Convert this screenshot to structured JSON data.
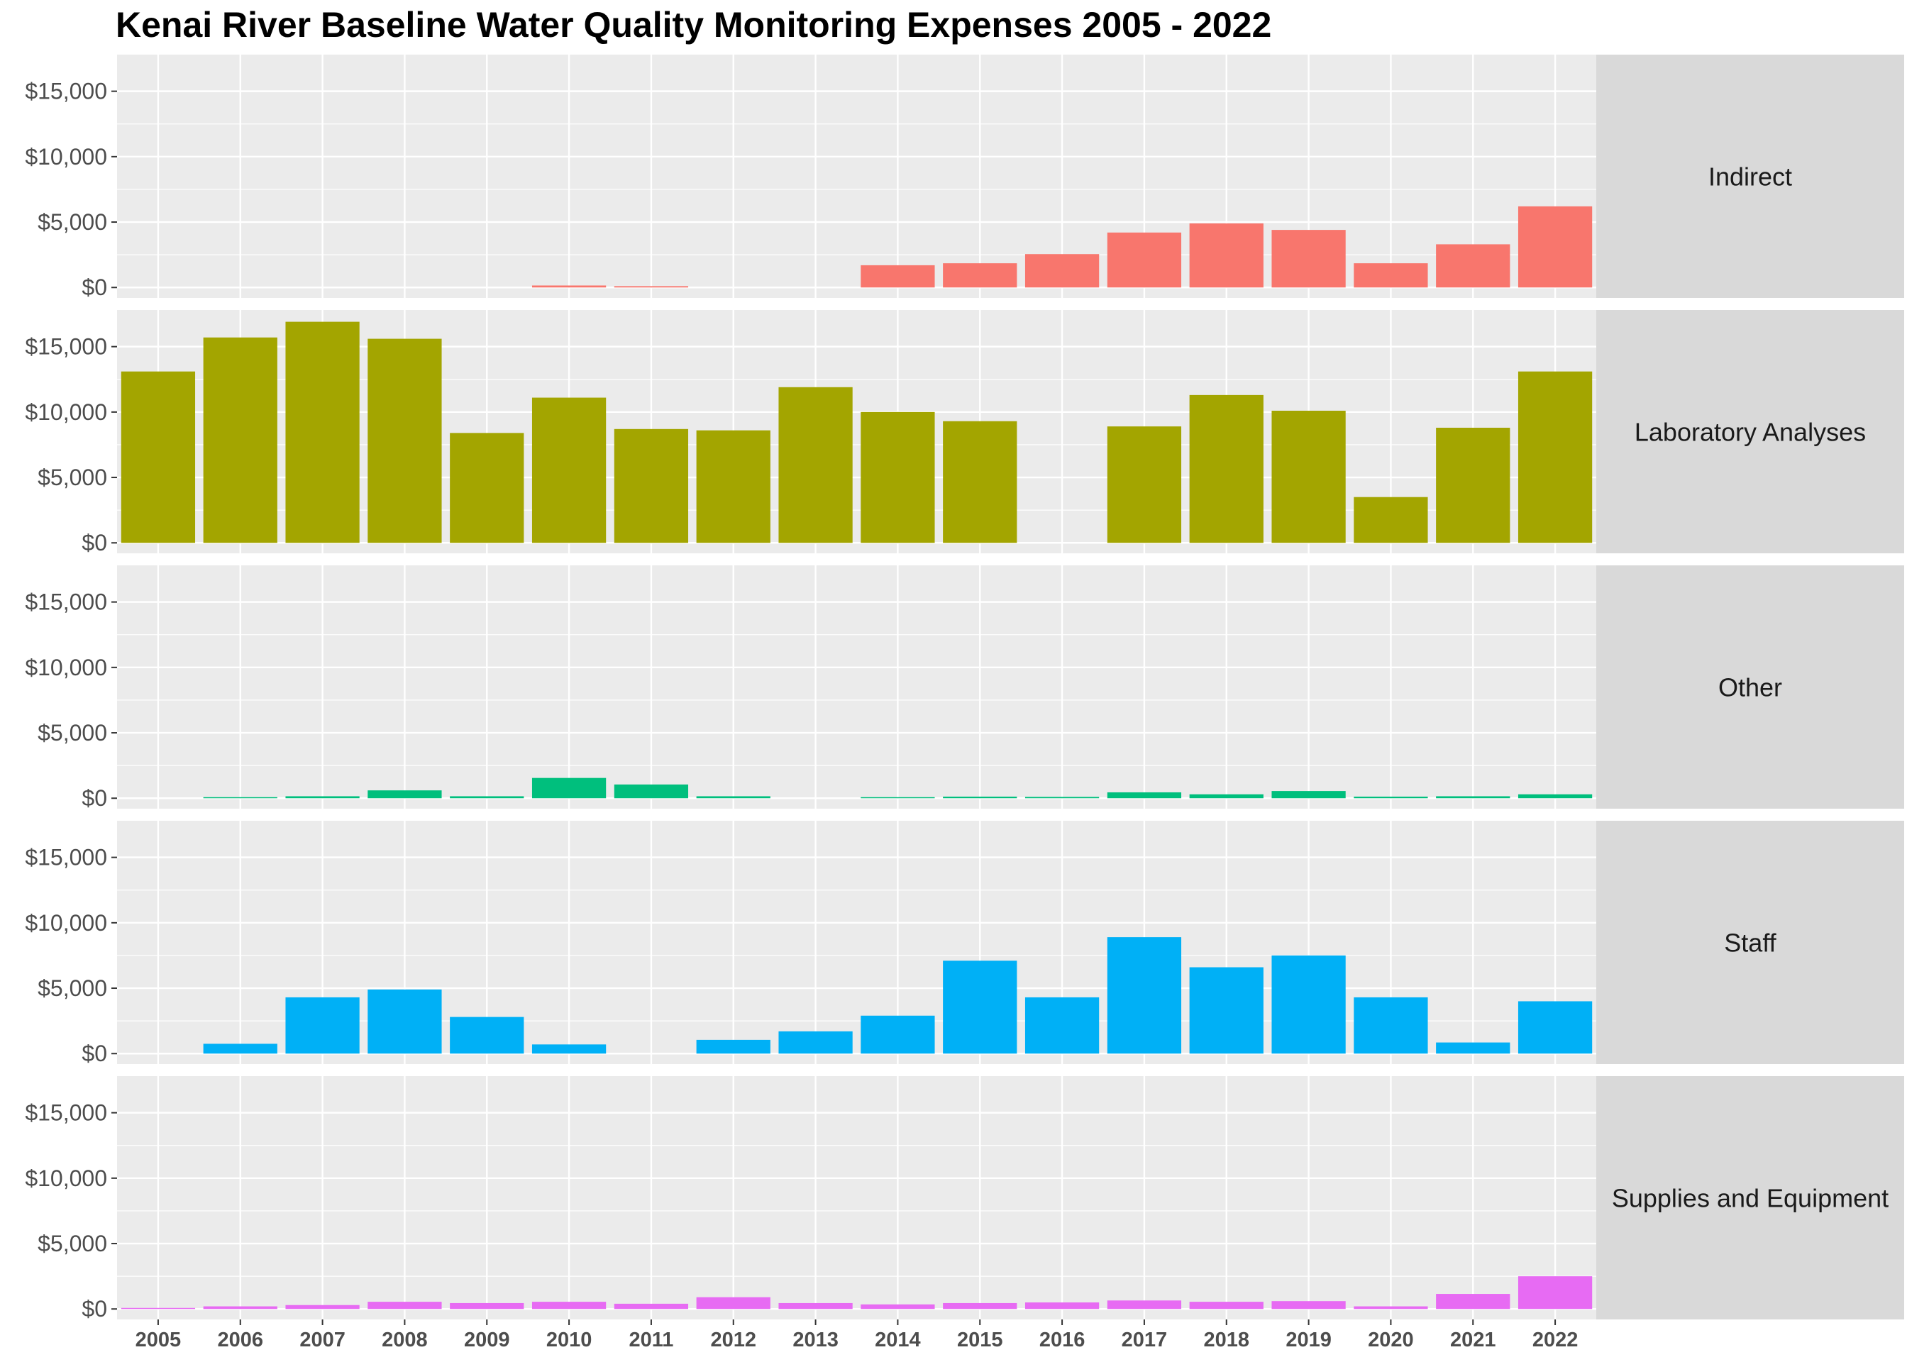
{
  "chart_data": {
    "type": "bar",
    "title": "Kenai River Baseline Water Quality Monitoring Expenses 2005 - 2022",
    "xlabel": "",
    "ylabel": "",
    "categories": [
      "2005",
      "2006",
      "2007",
      "2008",
      "2009",
      "2010",
      "2011",
      "2012",
      "2013",
      "2014",
      "2015",
      "2016",
      "2017",
      "2018",
      "2019",
      "2020",
      "2021",
      "2022"
    ],
    "ylim": [
      -800,
      17800
    ],
    "yticks": [
      0,
      5000,
      10000,
      15000
    ],
    "ytick_labels": [
      "$0",
      "$5,000",
      "$10,000",
      "$15,000"
    ],
    "grid": true,
    "legend": "none",
    "facets": [
      {
        "label": "Indirect",
        "color": "#F8766D",
        "values": [
          0,
          0,
          0,
          0,
          0,
          150,
          100,
          0,
          0,
          1700,
          1850,
          2550,
          4200,
          4900,
          4400,
          1850,
          3300,
          6200
        ]
      },
      {
        "label": "Laboratory Analyses",
        "color": "#A3A500",
        "values": [
          13100,
          15700,
          16900,
          15600,
          8400,
          11100,
          8700,
          8600,
          11900,
          10000,
          9300,
          0,
          8900,
          11300,
          10100,
          3500,
          8800,
          13100
        ]
      },
      {
        "label": "Other",
        "color": "#00BF7D",
        "values": [
          0,
          80,
          150,
          600,
          150,
          1550,
          1050,
          150,
          0,
          80,
          120,
          100,
          450,
          300,
          550,
          120,
          150,
          300
        ]
      },
      {
        "label": "Staff",
        "color": "#00B0F6",
        "values": [
          0,
          750,
          4300,
          4900,
          2800,
          700,
          0,
          1050,
          1700,
          2900,
          7100,
          4300,
          8900,
          6600,
          7500,
          4300,
          850,
          4000
        ]
      },
      {
        "label": "Supplies and Equipment",
        "color": "#E76BF3",
        "values": [
          80,
          200,
          300,
          550,
          450,
          550,
          400,
          900,
          450,
          350,
          450,
          500,
          650,
          550,
          600,
          200,
          1150,
          2500
        ]
      }
    ]
  }
}
